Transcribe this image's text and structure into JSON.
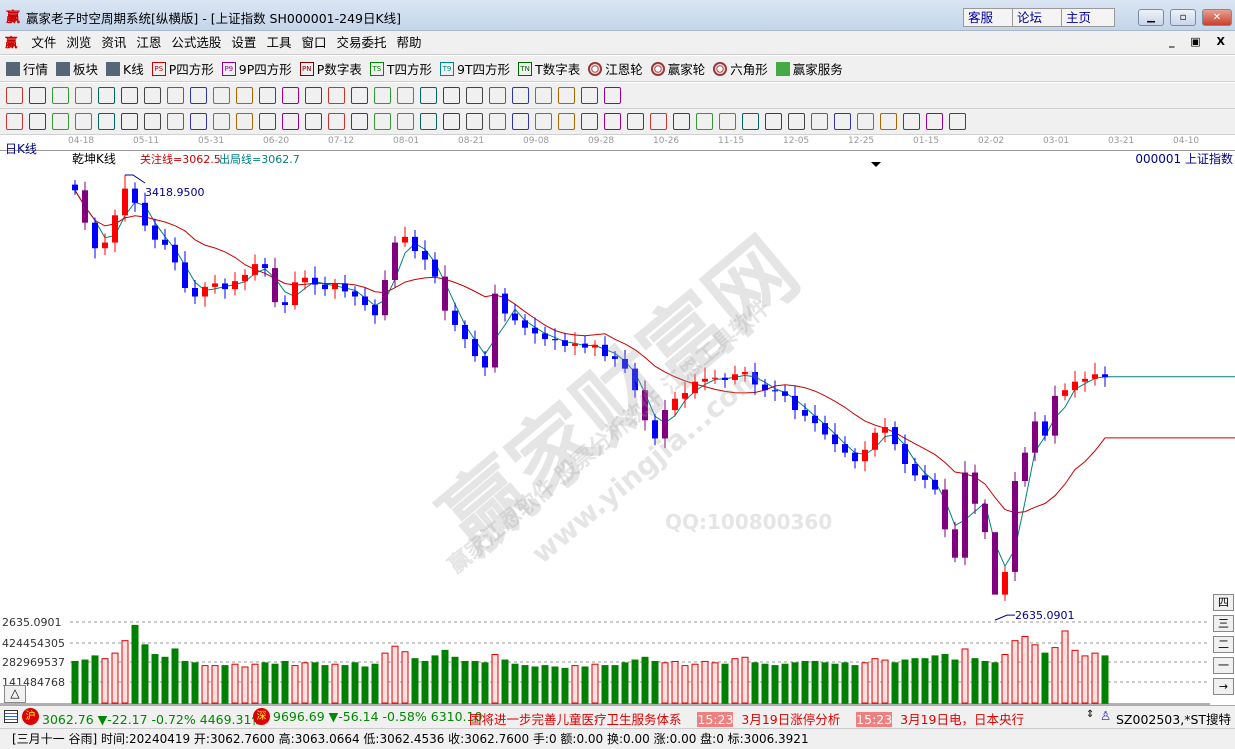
{
  "window": {
    "logo": "赢",
    "title": "赢家老子时空周期系统[纵横版] - [上证指数  SH000001-249日K线]",
    "links": [
      "客服",
      "论坛",
      "主页"
    ],
    "controls": [
      "minimize",
      "maximize",
      "close"
    ]
  },
  "menu": {
    "logo": "赢",
    "items": [
      "文件",
      "浏览",
      "资讯",
      "江恩",
      "公式选股",
      "设置",
      "工具",
      "窗口",
      "交易委托",
      "帮助"
    ],
    "mdi_controls": [
      "_",
      "🗗",
      "X"
    ]
  },
  "toolbar1": [
    {
      "icon": "quotes-grid-icon",
      "label": "行情"
    },
    {
      "icon": "sector-icon",
      "label": "板块"
    },
    {
      "icon": "kline-icon",
      "label": "K线"
    },
    {
      "icon": "ps-icon",
      "tag": "PS",
      "label": "P四方形"
    },
    {
      "icon": "p9-icon",
      "tag": "P9",
      "label": "9P四方形"
    },
    {
      "icon": "pn-icon",
      "tag": "PN",
      "label": "P数字表"
    },
    {
      "icon": "ts-icon",
      "tag": "TS",
      "label": "T四方形"
    },
    {
      "icon": "t9-icon",
      "tag": "T9",
      "label": "9T四方形"
    },
    {
      "icon": "tn-icon",
      "tag": "TN",
      "label": "T数字表"
    },
    {
      "icon": "gann-wheel-icon",
      "label": "江恩轮"
    },
    {
      "icon": "winner-wheel-icon",
      "label": "赢家轮"
    },
    {
      "icon": "hexagon-icon",
      "label": "六角形"
    },
    {
      "icon": "dollar-icon",
      "label": "赢家服务"
    }
  ],
  "toolbar2_icons": [
    "period-select",
    "draw",
    "cycle",
    "bars",
    "candles",
    "indicator",
    "flag",
    "first",
    "last",
    "prev",
    "next",
    "diamond-1",
    "diamond-2",
    "diamond-3",
    "diamond-4",
    "diamond-5",
    "diamond-6",
    "hand",
    "crosshair",
    "wave",
    "vote",
    "calendar",
    "calc",
    "notebook",
    "save",
    "copy",
    "export"
  ],
  "toolbar3_icons": [
    "line",
    "hash",
    "comb-1",
    "comb-2",
    "comb-3",
    "comb-4",
    "comb-5",
    "circle-grid",
    "grid-1",
    "grid-2",
    "angle",
    "star",
    "square-x",
    "fan-1",
    "fan-2",
    "grid-3",
    "grid-4",
    "grid-5",
    "fan-3",
    "fan-4",
    "fan-5",
    "zigzag",
    "grid-6",
    "grid-7",
    "parallel",
    "table",
    "percent-fan",
    "percent",
    "gann-1",
    "gann-2",
    "gann-3",
    "gann-4",
    "gann-5",
    "gann-6",
    "gann-7",
    "gann-8",
    "gann-9",
    "gann-10",
    "gann-11",
    "gann-12",
    "yin-yang",
    "infinity"
  ],
  "colors": {
    "up": "#ff0000",
    "down": "#0000ff",
    "strong": "#800080",
    "ma_short": "#008080",
    "ma_long": "#cc0000",
    "vol_up": "#dd0000",
    "vol_down": "#008000"
  },
  "chart_header": {
    "period": "日K线",
    "indicator": "乾坤K线",
    "focus_line": "关注线=3062.5",
    "exit_line": "出局线=3062.7",
    "symbol": "000001  上证指数"
  },
  "watermark": {
    "big": "赢家财富网",
    "line2": "赢家江恩软件 股票分析软件 江恩工具软件",
    "url": "www.yingjia...com",
    "qq": "QQ:100800360"
  },
  "chart_data": {
    "type": "candlestick",
    "date_ticks": [
      "04-18",
      "05-11",
      "05-31",
      "06-20",
      "07-12",
      "08-01",
      "08-21",
      "09-08",
      "09-28",
      "10-26",
      "11-15",
      "12-05",
      "12-25",
      "01-15",
      "02-02",
      "03-01",
      "03-21",
      "04-10"
    ],
    "high_label": "3418.9500",
    "low_label": "2635.0901",
    "high": 3418.95,
    "low": 2635.0901,
    "close": [
      3392,
      3335,
      3290,
      3300,
      3348,
      3395,
      3370,
      3330,
      3305,
      3296,
      3265,
      3220,
      3205,
      3222,
      3228,
      3218,
      3232,
      3243,
      3262,
      3255,
      3195,
      3190,
      3230,
      3238,
      3226,
      3218,
      3228,
      3214,
      3205,
      3190,
      3172,
      3234,
      3300,
      3310,
      3285,
      3270,
      3240,
      3180,
      3155,
      3130,
      3100,
      3080,
      3210,
      3175,
      3163,
      3150,
      3140,
      3130,
      3128,
      3118,
      3122,
      3115,
      3120,
      3100,
      3095,
      3078,
      3040,
      2987,
      2955,
      3005,
      3025,
      3035,
      3055,
      3060,
      3062,
      3058,
      3068,
      3072,
      3050,
      3040,
      3038,
      3030,
      3005,
      2995,
      2982,
      2962,
      2945,
      2930,
      2915,
      2935,
      2965,
      2975,
      2945,
      2910,
      2890,
      2882,
      2865,
      2795,
      2745,
      2895,
      2840,
      2790,
      2680,
      2720,
      2880,
      2930,
      2985,
      2960,
      3030,
      3040,
      3055,
      3060,
      3068,
      3062.76
    ],
    "volume_axis": [
      "2635.0901",
      "424454305",
      "282969537",
      "141484768"
    ],
    "volume": [
      300000000.0,
      310000000.0,
      340000000.0,
      320000000.0,
      360000000.0,
      450000000.0,
      560000000.0,
      420000000.0,
      350000000.0,
      330000000.0,
      390000000.0,
      300000000.0,
      290000000.0,
      270000000.0,
      270000000.0,
      270000000.0,
      280000000.0,
      260000000.0,
      280000000.0,
      290000000.0,
      280000000.0,
      300000000.0,
      270000000.0,
      290000000.0,
      290000000.0,
      270000000.0,
      280000000.0,
      270000000.0,
      290000000.0,
      260000000.0,
      280000000.0,
      360000000.0,
      410000000.0,
      370000000.0,
      320000000.0,
      300000000.0,
      340000000.0,
      380000000.0,
      330000000.0,
      300000000.0,
      300000000.0,
      290000000.0,
      350000000.0,
      310000000.0,
      280000000.0,
      270000000.0,
      260000000.0,
      270000000.0,
      260000000.0,
      250000000.0,
      270000000.0,
      260000000.0,
      280000000.0,
      270000000.0,
      270000000.0,
      290000000.0,
      310000000.0,
      330000000.0,
      300000000.0,
      290000000.0,
      300000000.0,
      270000000.0,
      280000000.0,
      300000000.0,
      290000000.0,
      280000000.0,
      320000000.0,
      330000000.0,
      290000000.0,
      280000000.0,
      270000000.0,
      280000000.0,
      290000000.0,
      300000000.0,
      300000000.0,
      290000000.0,
      280000000.0,
      290000000.0,
      270000000.0,
      290000000.0,
      320000000.0,
      310000000.0,
      290000000.0,
      310000000.0,
      320000000.0,
      320000000.0,
      340000000.0,
      350000000.0,
      310000000.0,
      390000000.0,
      320000000.0,
      300000000.0,
      290000000.0,
      350000000.0,
      450000000.0,
      480000000.0,
      420000000.0,
      360000000.0,
      400000000.0,
      520000000.0,
      380000000.0,
      340000000.0,
      360000000.0,
      340000000.0
    ]
  },
  "side_buttons": [
    "四",
    "三",
    "二",
    "一",
    "→"
  ],
  "collapse_button": "△",
  "ticker": {
    "sh_badge": "沪",
    "sh": "3062.76 ▼-22.17 -0.72% 4469.31亿",
    "sz_badge": "深",
    "sz": "9696.69 ▼-56.14 -0.58% 6310.10",
    "news1": "国将进一步完善儿童医疗卫生服务体系",
    "time1": "15:23",
    "news2": "3月19日涨停分析",
    "time2": "15:23",
    "news3": "3月19日电，日本央行",
    "stock": "SZ002503,*ST搜特"
  },
  "status": "[三月十一 谷雨] 时间:20240419 开:3062.7600 高:3063.0664 低:3062.4536 收:3062.7600 手:0 额:0.00 换:0.00 涨:0.00 盘:0 标:3006.3921"
}
